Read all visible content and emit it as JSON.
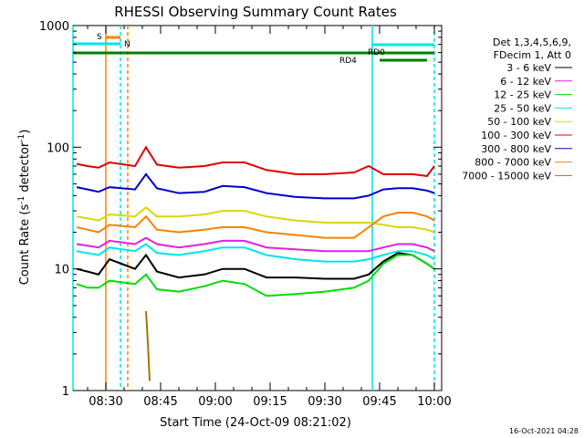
{
  "chart_data": {
    "type": "line",
    "title": "RHESSI Observing Summary Count Rates",
    "xlabel": "Start Time (24-Oct-09 08:21:02)",
    "ylabel": "Count Rate (s⁻¹ detector⁻¹)",
    "ylabel_text": "Count Rate (s",
    "ylabel_sup1": "-1",
    "ylabel_mid": " detector",
    "ylabel_sup2": "-1",
    "ylabel_end": ")",
    "y_scale": "log",
    "ylim": [
      1,
      1000
    ],
    "xlim": [
      "08:21:02",
      "10:02:00"
    ],
    "x_ticks": [
      "08:30",
      "08:45",
      "09:00",
      "09:15",
      "09:30",
      "09:45",
      "10:00"
    ],
    "y_ticks": [
      "1",
      "10",
      "100",
      "1000"
    ],
    "legend_position": "right",
    "legend_header": [
      "Det 1,3,4,5,6,9,",
      "FDecim 1, Att 0"
    ],
    "timestamp": "16-Oct-2021 04:28",
    "series": [
      {
        "name": "3 - 6 keV",
        "color": "#000000",
        "points": [
          [
            "08:22",
            10
          ],
          [
            "08:25",
            9.5
          ],
          [
            "08:28",
            9
          ],
          [
            "08:31",
            12
          ],
          [
            "08:38",
            10
          ],
          [
            "08:41",
            13
          ],
          [
            "08:44",
            9.5
          ],
          [
            "08:50",
            8.5
          ],
          [
            "08:57",
            9
          ],
          [
            "09:02",
            10
          ],
          [
            "09:08",
            10
          ],
          [
            "09:14",
            8.5
          ],
          [
            "09:22",
            8.5
          ],
          [
            "09:30",
            8.3
          ],
          [
            "09:38",
            8.3
          ],
          [
            "09:42",
            9
          ],
          [
            "09:46",
            11.5
          ],
          [
            "09:50",
            13.5
          ],
          [
            "09:54",
            13
          ],
          [
            "09:58",
            11
          ],
          [
            "10:00",
            10
          ]
        ]
      },
      {
        "name": "6 - 12 keV",
        "color": "#e020e0",
        "points": [
          [
            "08:22",
            16
          ],
          [
            "08:25",
            15.5
          ],
          [
            "08:28",
            15
          ],
          [
            "08:31",
            17
          ],
          [
            "08:38",
            16
          ],
          [
            "08:41",
            18
          ],
          [
            "08:44",
            16
          ],
          [
            "08:50",
            15
          ],
          [
            "08:57",
            16
          ],
          [
            "09:02",
            17
          ],
          [
            "09:08",
            17
          ],
          [
            "09:14",
            15
          ],
          [
            "09:22",
            14.5
          ],
          [
            "09:30",
            14
          ],
          [
            "09:38",
            14
          ],
          [
            "09:42",
            14
          ],
          [
            "09:46",
            15
          ],
          [
            "09:50",
            16
          ],
          [
            "09:54",
            16
          ],
          [
            "09:58",
            15
          ],
          [
            "10:00",
            14
          ]
        ]
      },
      {
        "name": "12 - 25 keV",
        "color": "#00dd00",
        "points": [
          [
            "08:22",
            7.5
          ],
          [
            "08:25",
            7
          ],
          [
            "08:28",
            7
          ],
          [
            "08:31",
            8
          ],
          [
            "08:38",
            7.5
          ],
          [
            "08:41",
            9
          ],
          [
            "08:44",
            6.8
          ],
          [
            "08:50",
            6.5
          ],
          [
            "08:57",
            7.2
          ],
          [
            "09:02",
            8
          ],
          [
            "09:08",
            7.5
          ],
          [
            "09:14",
            6
          ],
          [
            "09:22",
            6.2
          ],
          [
            "09:30",
            6.5
          ],
          [
            "09:38",
            7
          ],
          [
            "09:42",
            8
          ],
          [
            "09:46",
            11
          ],
          [
            "09:50",
            13
          ],
          [
            "09:54",
            13
          ],
          [
            "09:58",
            11
          ],
          [
            "10:00",
            10
          ]
        ]
      },
      {
        "name": "25 - 50 keV",
        "color": "#00e5e5",
        "points": [
          [
            "08:22",
            14
          ],
          [
            "08:25",
            13.5
          ],
          [
            "08:28",
            13
          ],
          [
            "08:31",
            15
          ],
          [
            "08:38",
            14
          ],
          [
            "08:41",
            16
          ],
          [
            "08:44",
            13.5
          ],
          [
            "08:50",
            13
          ],
          [
            "08:57",
            14
          ],
          [
            "09:02",
            15
          ],
          [
            "09:08",
            15
          ],
          [
            "09:14",
            13
          ],
          [
            "09:22",
            12
          ],
          [
            "09:30",
            11.5
          ],
          [
            "09:38",
            11.5
          ],
          [
            "09:42",
            12
          ],
          [
            "09:46",
            13
          ],
          [
            "09:50",
            14
          ],
          [
            "09:54",
            14
          ],
          [
            "09:58",
            13
          ],
          [
            "10:00",
            12
          ]
        ]
      },
      {
        "name": "50 - 100 keV",
        "color": "#d8d800",
        "points": [
          [
            "08:22",
            27
          ],
          [
            "08:25",
            26
          ],
          [
            "08:28",
            25
          ],
          [
            "08:31",
            28
          ],
          [
            "08:38",
            27
          ],
          [
            "08:41",
            32
          ],
          [
            "08:44",
            27
          ],
          [
            "08:50",
            27
          ],
          [
            "08:57",
            28
          ],
          [
            "09:02",
            30
          ],
          [
            "09:08",
            30
          ],
          [
            "09:14",
            27
          ],
          [
            "09:22",
            25
          ],
          [
            "09:30",
            24
          ],
          [
            "09:38",
            24
          ],
          [
            "09:42",
            24
          ],
          [
            "09:46",
            23
          ],
          [
            "09:50",
            22
          ],
          [
            "09:54",
            22
          ],
          [
            "09:58",
            21
          ],
          [
            "10:00",
            20
          ]
        ]
      },
      {
        "name": "100 - 300 keV",
        "color": "#e00000",
        "points": [
          [
            "08:22",
            73
          ],
          [
            "08:25",
            70
          ],
          [
            "08:28",
            68
          ],
          [
            "08:31",
            75
          ],
          [
            "08:38",
            70
          ],
          [
            "08:41",
            100
          ],
          [
            "08:44",
            72
          ],
          [
            "08:50",
            68
          ],
          [
            "08:57",
            70
          ],
          [
            "09:02",
            75
          ],
          [
            "09:08",
            75
          ],
          [
            "09:14",
            65
          ],
          [
            "09:22",
            60
          ],
          [
            "09:30",
            60
          ],
          [
            "09:38",
            62
          ],
          [
            "09:42",
            70
          ],
          [
            "09:46",
            60
          ],
          [
            "09:50",
            60
          ],
          [
            "09:54",
            60
          ],
          [
            "09:58",
            58
          ],
          [
            "10:00",
            70
          ]
        ]
      },
      {
        "name": "300 - 800 keV",
        "color": "#0000d0",
        "points": [
          [
            "08:22",
            47
          ],
          [
            "08:25",
            45
          ],
          [
            "08:28",
            43
          ],
          [
            "08:31",
            47
          ],
          [
            "08:38",
            45
          ],
          [
            "08:41",
            60
          ],
          [
            "08:44",
            46
          ],
          [
            "08:50",
            42
          ],
          [
            "08:57",
            43
          ],
          [
            "09:02",
            48
          ],
          [
            "09:08",
            47
          ],
          [
            "09:14",
            42
          ],
          [
            "09:22",
            39
          ],
          [
            "09:30",
            38
          ],
          [
            "09:38",
            38
          ],
          [
            "09:42",
            40
          ],
          [
            "09:46",
            45
          ],
          [
            "09:50",
            46
          ],
          [
            "09:54",
            46
          ],
          [
            "09:58",
            44
          ],
          [
            "10:00",
            42
          ]
        ]
      },
      {
        "name": "800 - 7000 keV",
        "color": "#ff8000",
        "points": [
          [
            "08:22",
            22
          ],
          [
            "08:25",
            21
          ],
          [
            "08:28",
            20
          ],
          [
            "08:31",
            23
          ],
          [
            "08:38",
            22
          ],
          [
            "08:41",
            27
          ],
          [
            "08:44",
            21
          ],
          [
            "08:50",
            20
          ],
          [
            "08:57",
            21
          ],
          [
            "09:02",
            22
          ],
          [
            "09:08",
            22
          ],
          [
            "09:14",
            20
          ],
          [
            "09:22",
            19
          ],
          [
            "09:30",
            18
          ],
          [
            "09:38",
            18
          ],
          [
            "09:42",
            22
          ],
          [
            "09:46",
            27
          ],
          [
            "09:50",
            29
          ],
          [
            "09:54",
            29
          ],
          [
            "09:58",
            27
          ],
          [
            "10:00",
            25
          ]
        ]
      },
      {
        "name": "7000 - 15000 keV",
        "color": "#a07800",
        "points": [
          [
            "08:41",
            4.5
          ],
          [
            "08:41.5",
            2.5
          ],
          [
            "08:42",
            1.2
          ]
        ]
      }
    ],
    "flags": [
      {
        "label": "S",
        "color": "#ff8000",
        "start": "08:30",
        "end": "08:34"
      },
      {
        "label": "N",
        "color": "#00e5e5",
        "start": "08:21",
        "end": "08:34"
      },
      {
        "label": "RD0",
        "color": "#00e5e5",
        "start": "09:43",
        "end": "10:00"
      },
      {
        "label": "RD4",
        "color": "#008000",
        "start": "08:21",
        "end": "10:00"
      }
    ]
  }
}
